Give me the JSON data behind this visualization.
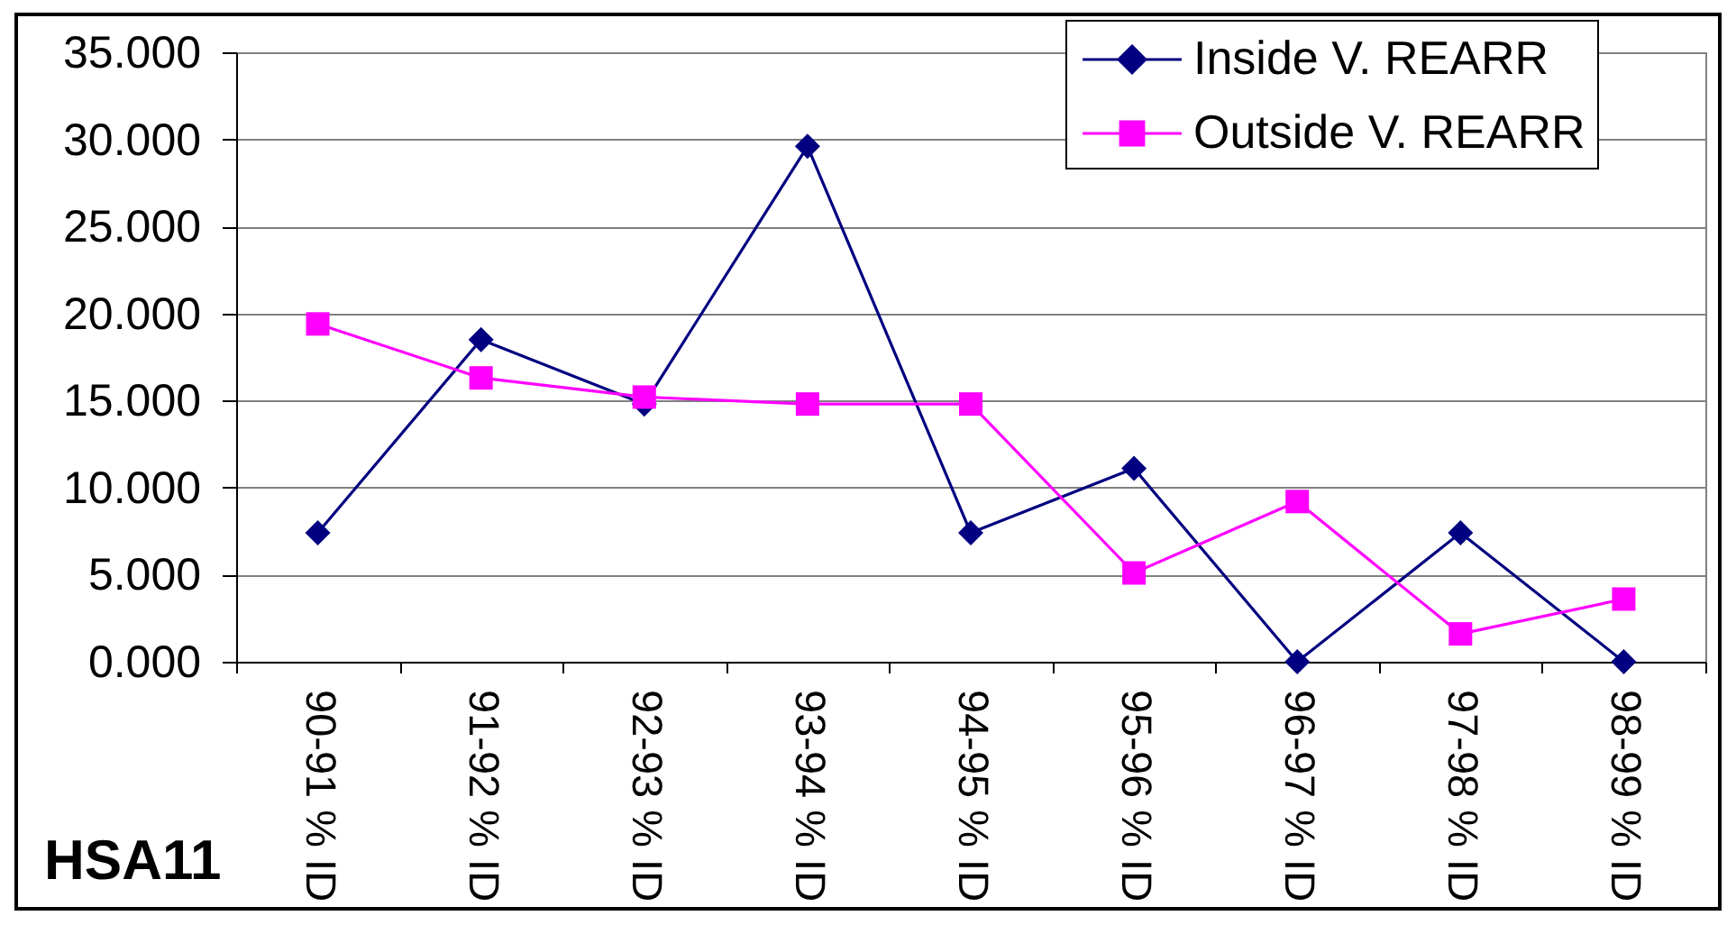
{
  "chart_data": {
    "type": "line",
    "title": "HSA11",
    "categories": [
      "90-91 % ID",
      "91-92 % ID",
      "92-93 % ID",
      "93-94 % ID",
      "94-95 % ID",
      "95-96 % ID",
      "96-97 % ID",
      "97-98 % ID",
      "98-99 % ID"
    ],
    "series": [
      {
        "name": "Inside V. REARR",
        "color": "#000080",
        "marker": "diamond",
        "values": [
          7.4,
          18.5,
          14.8,
          29.6,
          7.4,
          11.1,
          0,
          7.4,
          0
        ]
      },
      {
        "name": "Outside V. REARR",
        "color": "#ff00ff",
        "marker": "square",
        "values": [
          19.4,
          16.3,
          15.2,
          14.8,
          14.8,
          5.1,
          9.2,
          1.6,
          3.6
        ]
      }
    ],
    "ylim": [
      0,
      35
    ],
    "yticks": [
      {
        "value": 0,
        "label": "0.000"
      },
      {
        "value": 5,
        "label": "5.000"
      },
      {
        "value": 10,
        "label": "10.000"
      },
      {
        "value": 15,
        "label": "15.000"
      },
      {
        "value": 20,
        "label": "20.000"
      },
      {
        "value": 25,
        "label": "25.000"
      },
      {
        "value": 30,
        "label": "30.000"
      },
      {
        "value": 35,
        "label": "35.000"
      }
    ],
    "grid": "y",
    "legend": "top right"
  }
}
